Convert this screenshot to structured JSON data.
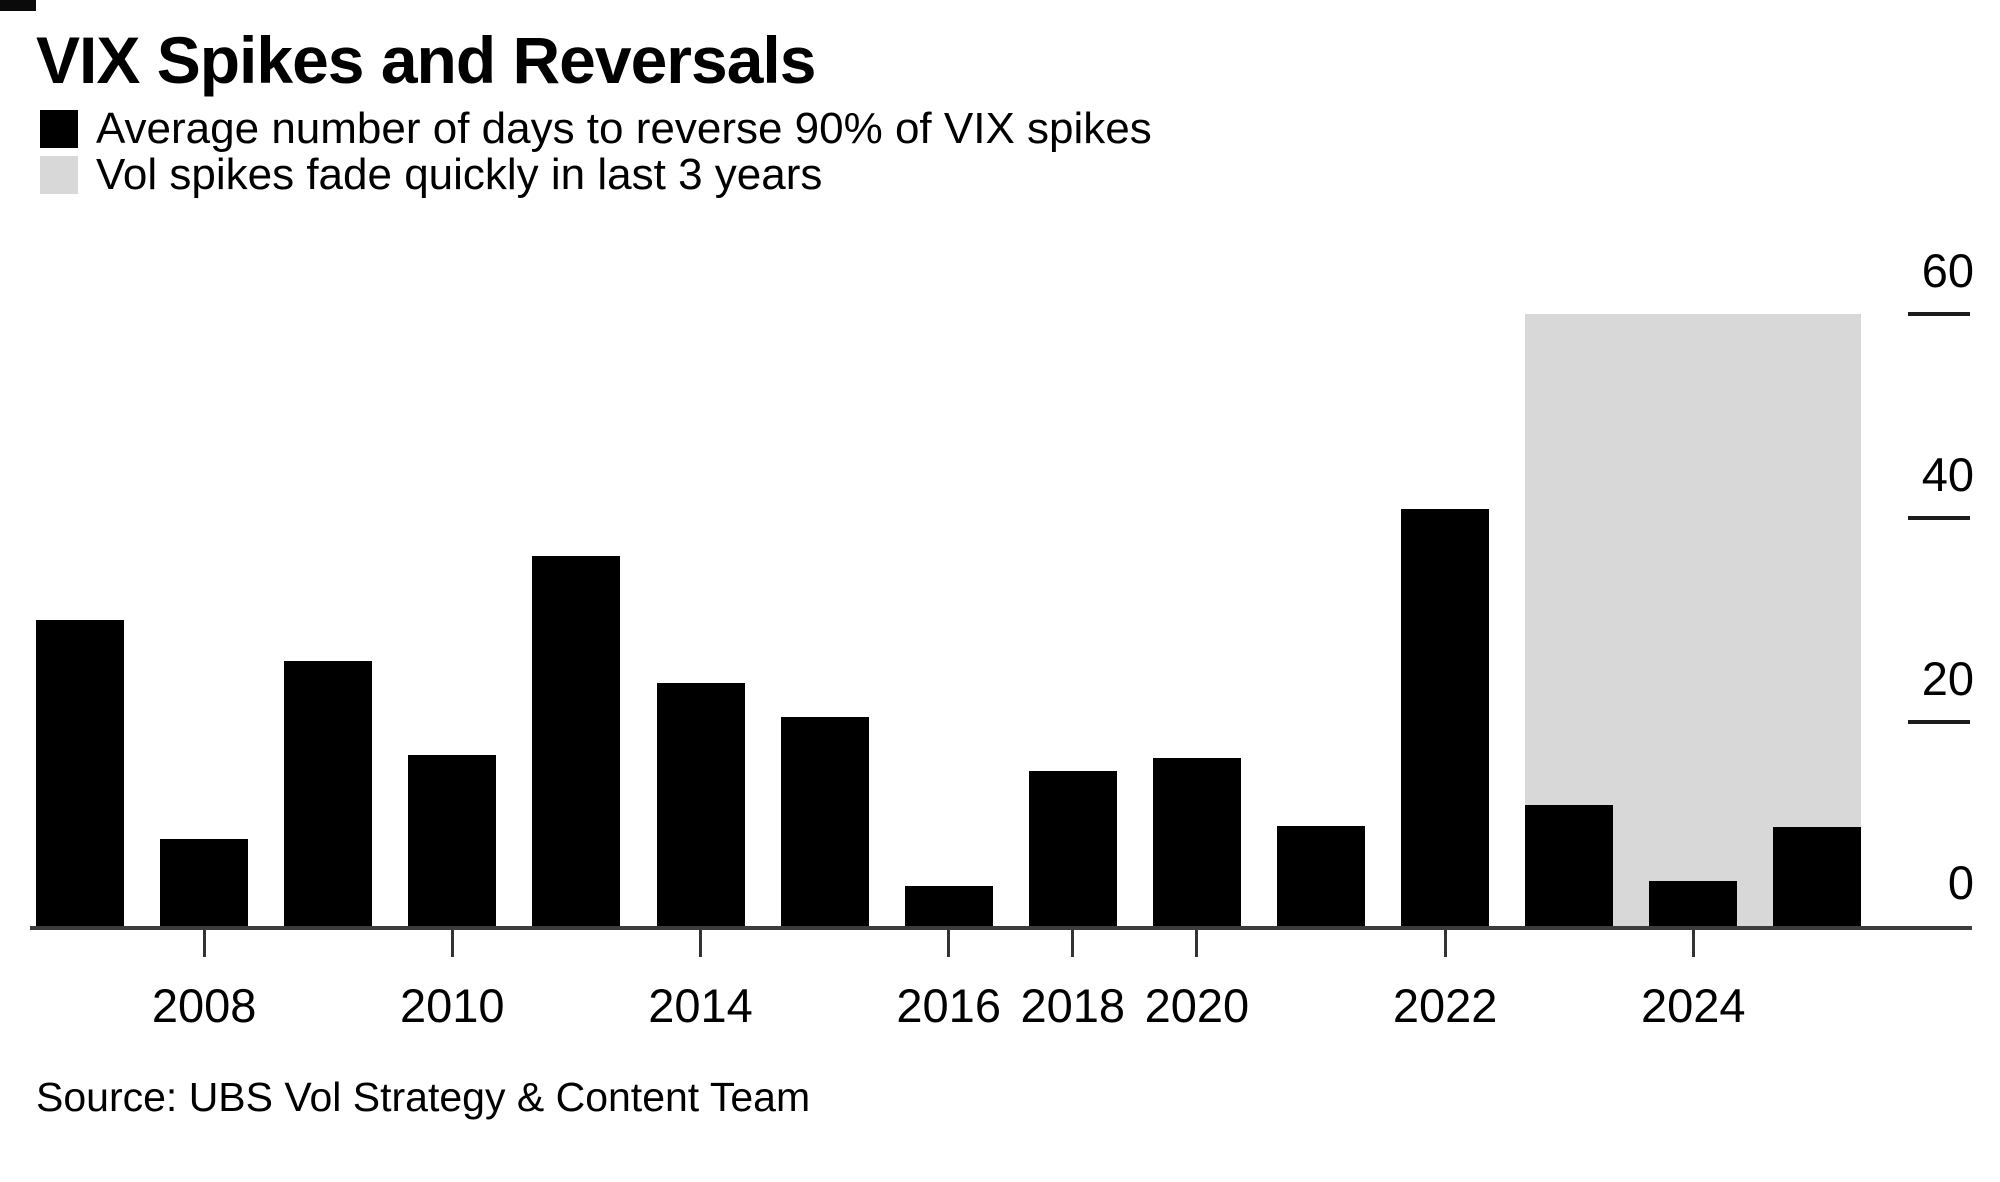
{
  "header": {
    "title": "VIX Spikes and Reversals"
  },
  "legend": [
    {
      "swatch_color": "#000000",
      "label": "Average number of days to reverse 90% of VIX spikes"
    },
    {
      "swatch_color": "#d8d8d8",
      "label": "Vol spikes fade quickly in last 3 years"
    }
  ],
  "source": {
    "text": "Source: UBS Vol Strategy & Content Team"
  },
  "colors": {
    "bar": "#000000",
    "highlight_region": "#d8d8d8",
    "axis_line": "#3d3d3d",
    "tick": "#1c1c1c",
    "text": "#000000",
    "background": "#ffffff"
  },
  "chart_data": {
    "type": "bar",
    "title": "VIX Spikes and Reversals",
    "series_name": "Average number of days to reverse 90% of VIX spikes",
    "values": [
      30,
      8.5,
      26,
      16.8,
      36.3,
      23.8,
      20.5,
      3.9,
      15.2,
      16.5,
      9.8,
      40.9,
      11.9,
      4.4,
      9.7
    ],
    "x_tick_labels": [
      {
        "label": "2008",
        "bar_index": 1
      },
      {
        "label": "2010",
        "bar_index": 3
      },
      {
        "label": "2014",
        "bar_index": 5
      },
      {
        "label": "2016",
        "bar_index": 7
      },
      {
        "label": "2018",
        "bar_index": 8
      },
      {
        "label": "2020",
        "bar_index": 9
      },
      {
        "label": "2022",
        "bar_index": 11
      },
      {
        "label": "2024",
        "bar_index": 13
      },
      {
        "label": "0",
        "bar_index": -1
      }
    ],
    "y_ticks": [
      0,
      20,
      40,
      60
    ],
    "y_tick_labels": [
      "0",
      "20",
      "40",
      "60"
    ],
    "ylim": [
      0,
      62
    ],
    "axis_side": "right",
    "grid": false,
    "legend_position": "top-left",
    "bar_color": "#000000",
    "highlight_region": {
      "from_bar": 12,
      "to_bar": 14,
      "top_value": 60,
      "color": "#d8d8d8",
      "meaning": "Vol spikes fade quickly in last 3 years"
    }
  }
}
